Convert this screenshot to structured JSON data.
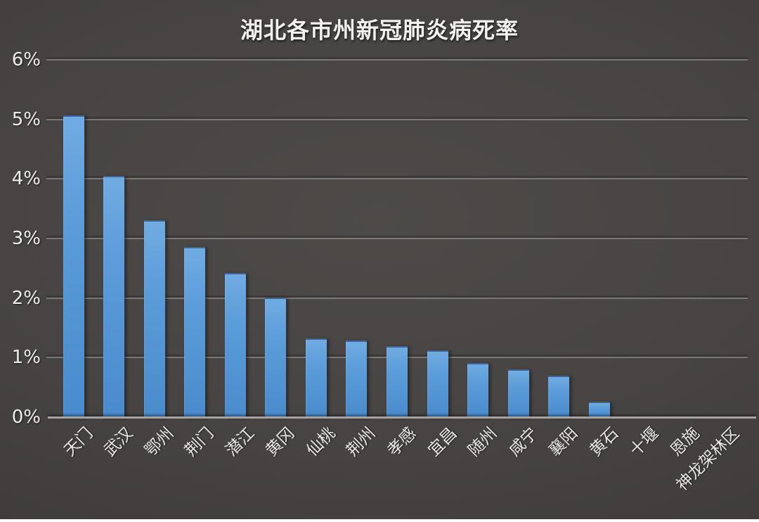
{
  "chart_data": {
    "type": "bar",
    "title": "湖北各市州新冠肺炎病死率",
    "categories": [
      "天门",
      "武汉",
      "鄂州",
      "荆门",
      "潜江",
      "黄冈",
      "仙桃",
      "荆州",
      "孝感",
      "宜昌",
      "随州",
      "咸宁",
      "襄阳",
      "黄石",
      "十堰",
      "恩施",
      "神龙架林区"
    ],
    "values": [
      5.07,
      4.05,
      3.31,
      2.86,
      2.42,
      2.01,
      1.32,
      1.29,
      1.19,
      1.12,
      0.91,
      0.8,
      0.7,
      0.26,
      0,
      0,
      0
    ],
    "value_unit": "%",
    "xlabel": "",
    "ylabel": "",
    "ylim": [
      0,
      6
    ],
    "ytick_labels": [
      "0%",
      "1%",
      "2%",
      "3%",
      "4%",
      "5%",
      "6%"
    ],
    "grid": true,
    "legend": null,
    "colors": {
      "bar": "#5b9cd9",
      "background": "#454241",
      "text": "#edecea",
      "gridline": "#8a8887",
      "axis_line": "#a6a3a1"
    }
  }
}
